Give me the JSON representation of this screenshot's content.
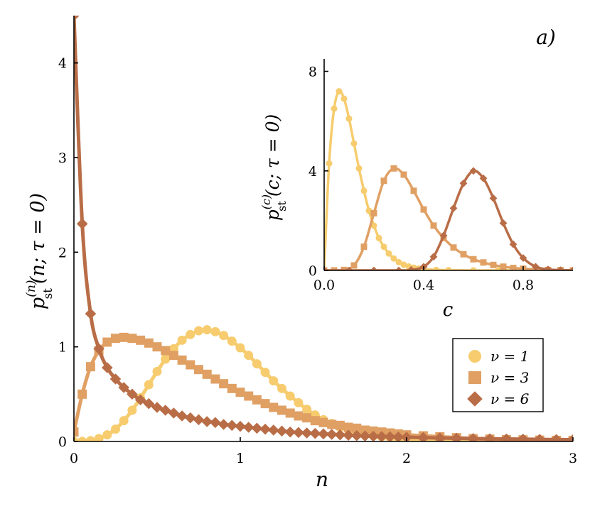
{
  "panel_label": "a)",
  "chart_data": [
    {
      "type": "line",
      "subtype": "line+scatter",
      "xlabel": "n",
      "ylabel_parts": {
        "pre": "p",
        "sup": "(n)",
        "sub": "st",
        "args": "(n; τ = 0)"
      },
      "xlim": [
        0,
        3
      ],
      "ylim": [
        0,
        4.5
      ],
      "xticks": [
        "0",
        "1",
        "2",
        "3"
      ],
      "yticks": [
        "0",
        "1",
        "2",
        "3",
        "4"
      ],
      "xtick_values": [
        0,
        1,
        2,
        3
      ],
      "ytick_values": [
        0,
        1,
        2,
        3,
        4
      ],
      "grid": false,
      "legend_position": "bottom-right",
      "series": [
        {
          "name": "ν = 1",
          "color": "#f6cc6e",
          "marker": "circle",
          "x": [
            0.0,
            0.05,
            0.1,
            0.15,
            0.2,
            0.25,
            0.3,
            0.35,
            0.4,
            0.45,
            0.5,
            0.55,
            0.6,
            0.65,
            0.7,
            0.75,
            0.8,
            0.85,
            0.9,
            0.95,
            1.0,
            1.05,
            1.1,
            1.15,
            1.2,
            1.25,
            1.3,
            1.35,
            1.4,
            1.45,
            1.5,
            1.55,
            1.6,
            1.65,
            1.7,
            1.75,
            1.8,
            1.85,
            1.9,
            1.95,
            2.0,
            2.1,
            2.2,
            2.3,
            2.4,
            2.5,
            2.6,
            2.7,
            2.8,
            2.9,
            3.0
          ],
          "y": [
            0.0,
            0.001,
            0.008,
            0.03,
            0.07,
            0.13,
            0.22,
            0.33,
            0.46,
            0.6,
            0.74,
            0.87,
            0.98,
            1.07,
            1.13,
            1.17,
            1.18,
            1.16,
            1.12,
            1.06,
            0.99,
            0.91,
            0.82,
            0.73,
            0.64,
            0.56,
            0.48,
            0.41,
            0.34,
            0.28,
            0.23,
            0.19,
            0.15,
            0.12,
            0.1,
            0.08,
            0.06,
            0.05,
            0.04,
            0.03,
            0.023,
            0.014,
            0.008,
            0.005,
            0.003,
            0.002,
            0.001,
            0.001,
            0.0,
            0.0,
            0.0
          ]
        },
        {
          "name": "ν = 3",
          "color": "#e0a064",
          "marker": "square",
          "x": [
            0.0,
            0.05,
            0.1,
            0.15,
            0.2,
            0.25,
            0.3,
            0.35,
            0.4,
            0.45,
            0.5,
            0.55,
            0.6,
            0.65,
            0.7,
            0.75,
            0.8,
            0.85,
            0.9,
            0.95,
            1.0,
            1.05,
            1.1,
            1.15,
            1.2,
            1.25,
            1.3,
            1.35,
            1.4,
            1.45,
            1.5,
            1.55,
            1.6,
            1.65,
            1.7,
            1.75,
            1.8,
            1.85,
            1.9,
            1.95,
            2.0,
            2.1,
            2.2,
            2.3,
            2.4,
            2.5,
            2.6,
            2.7,
            2.8,
            2.9,
            3.0
          ],
          "y": [
            0.1,
            0.5,
            0.79,
            0.96,
            1.05,
            1.09,
            1.1,
            1.09,
            1.07,
            1.04,
            1.0,
            0.96,
            0.91,
            0.86,
            0.81,
            0.76,
            0.71,
            0.66,
            0.61,
            0.56,
            0.52,
            0.48,
            0.44,
            0.4,
            0.36,
            0.33,
            0.3,
            0.27,
            0.25,
            0.22,
            0.2,
            0.18,
            0.17,
            0.15,
            0.14,
            0.12,
            0.11,
            0.1,
            0.09,
            0.08,
            0.07,
            0.06,
            0.05,
            0.04,
            0.03,
            0.025,
            0.02,
            0.017,
            0.014,
            0.012,
            0.01
          ]
        },
        {
          "name": "ν = 6",
          "color": "#b96d47",
          "marker": "diamond",
          "x": [
            0.0,
            0.05,
            0.1,
            0.15,
            0.2,
            0.25,
            0.3,
            0.35,
            0.4,
            0.45,
            0.5,
            0.55,
            0.6,
            0.65,
            0.7,
            0.75,
            0.8,
            0.85,
            0.9,
            0.95,
            1.0,
            1.05,
            1.1,
            1.15,
            1.2,
            1.25,
            1.3,
            1.35,
            1.4,
            1.45,
            1.5,
            1.55,
            1.6,
            1.65,
            1.7,
            1.75,
            1.8,
            1.85,
            1.9,
            1.95,
            2.0,
            2.1,
            2.2,
            2.3,
            2.4,
            2.5,
            2.6,
            2.7,
            2.8,
            2.9,
            3.0
          ],
          "y": [
            4.5,
            2.3,
            1.35,
            0.98,
            0.78,
            0.66,
            0.57,
            0.5,
            0.44,
            0.4,
            0.36,
            0.33,
            0.3,
            0.27,
            0.25,
            0.23,
            0.21,
            0.2,
            0.18,
            0.17,
            0.16,
            0.15,
            0.14,
            0.13,
            0.12,
            0.11,
            0.1,
            0.095,
            0.09,
            0.085,
            0.08,
            0.075,
            0.07,
            0.066,
            0.062,
            0.058,
            0.055,
            0.052,
            0.05,
            0.047,
            0.045,
            0.041,
            0.037,
            0.034,
            0.031,
            0.028,
            0.026,
            0.024,
            0.022,
            0.02,
            0.018
          ]
        }
      ]
    },
    {
      "type": "line",
      "subtype": "line+scatter (inset)",
      "xlabel": "c",
      "ylabel_parts": {
        "pre": "p",
        "sup": "(c)",
        "sub": "st",
        "args": "(c; τ = 0)"
      },
      "xlim": [
        0,
        1
      ],
      "ylim": [
        0,
        8.5
      ],
      "xticks": [
        "0.0",
        "0.4",
        "0.8"
      ],
      "yticks": [
        "0",
        "4",
        "8"
      ],
      "xtick_values": [
        0,
        0.4,
        0.8
      ],
      "ytick_values": [
        0,
        4,
        8
      ],
      "grid": false,
      "legend_position": "none",
      "series": [
        {
          "name": "ν = 1",
          "color": "#f6cc6e",
          "marker": "circle",
          "x": [
            0.0,
            0.02,
            0.04,
            0.06,
            0.08,
            0.1,
            0.12,
            0.14,
            0.16,
            0.18,
            0.2,
            0.22,
            0.24,
            0.26,
            0.28,
            0.3,
            0.32,
            0.34,
            0.36,
            0.38,
            0.4,
            0.45,
            0.5,
            0.6,
            0.7,
            0.8,
            0.9,
            1.0
          ],
          "y": [
            0.0,
            4.3,
            6.5,
            7.2,
            6.9,
            6.1,
            5.1,
            4.1,
            3.2,
            2.4,
            1.8,
            1.3,
            0.95,
            0.68,
            0.48,
            0.33,
            0.23,
            0.16,
            0.11,
            0.07,
            0.05,
            0.02,
            0.01,
            0.0,
            0.0,
            0.0,
            0.0,
            0.0
          ]
        },
        {
          "name": "ν = 3",
          "color": "#e0a064",
          "marker": "square",
          "x": [
            0.0,
            0.04,
            0.08,
            0.12,
            0.16,
            0.2,
            0.24,
            0.28,
            0.32,
            0.36,
            0.4,
            0.44,
            0.48,
            0.52,
            0.56,
            0.6,
            0.64,
            0.68,
            0.72,
            0.76,
            0.8,
            0.85,
            0.9,
            0.95,
            1.0
          ],
          "y": [
            0.0,
            0.0,
            0.02,
            0.2,
            0.95,
            2.3,
            3.6,
            4.1,
            3.85,
            3.2,
            2.45,
            1.8,
            1.3,
            0.92,
            0.65,
            0.45,
            0.32,
            0.22,
            0.15,
            0.1,
            0.07,
            0.04,
            0.02,
            0.01,
            0.0
          ]
        },
        {
          "name": "ν = 6",
          "color": "#b96d47",
          "marker": "diamond",
          "x": [
            0.0,
            0.1,
            0.2,
            0.3,
            0.35,
            0.4,
            0.44,
            0.48,
            0.52,
            0.56,
            0.6,
            0.64,
            0.68,
            0.72,
            0.76,
            0.8,
            0.85,
            0.9,
            0.95,
            1.0
          ],
          "y": [
            0.0,
            0.0,
            0.0,
            0.0,
            0.02,
            0.15,
            0.55,
            1.4,
            2.5,
            3.5,
            4.0,
            3.7,
            2.9,
            1.9,
            1.05,
            0.5,
            0.15,
            0.04,
            0.01,
            0.0
          ]
        }
      ]
    }
  ]
}
